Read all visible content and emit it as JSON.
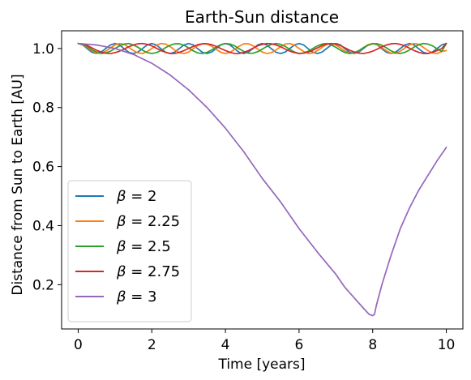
{
  "chart_data": {
    "type": "line",
    "title": "Earth-Sun distance",
    "xlabel": "Time [years]",
    "ylabel": "Distance from Sun to Earth [AU]",
    "xlim": [
      -0.45,
      10.45
    ],
    "ylim": [
      0.05,
      1.06
    ],
    "xticks": [
      0,
      2,
      4,
      6,
      8,
      10
    ],
    "yticks": [
      0.2,
      0.4,
      0.6,
      0.8,
      1.0
    ],
    "xtick_labels": [
      "0",
      "2",
      "4",
      "6",
      "8",
      "10"
    ],
    "ytick_labels": [
      "0.2",
      "0.4",
      "0.6",
      "0.8",
      "1.0"
    ],
    "grid": false,
    "legend_position": "lower-left",
    "series": [
      {
        "name": "β = 2",
        "beta": "2",
        "color": "#1f77b4",
        "x": [
          0,
          0.125,
          0.25,
          0.375,
          0.5,
          0.625,
          0.75,
          0.875,
          1,
          1.125,
          1.25,
          1.375,
          1.5,
          1.625,
          1.75,
          1.875,
          2,
          2.125,
          2.25,
          2.375,
          2.5,
          2.625,
          2.75,
          2.875,
          3,
          3.125,
          3.25,
          3.375,
          3.5,
          3.625,
          3.75,
          3.875,
          4,
          4.125,
          4.25,
          4.375,
          4.5,
          4.625,
          4.75,
          4.875,
          5,
          5.125,
          5.25,
          5.375,
          5.5,
          5.625,
          5.75,
          5.875,
          6,
          6.125,
          6.25,
          6.375,
          6.5,
          6.625,
          6.75,
          6.875,
          7,
          7.125,
          7.25,
          7.375,
          7.5,
          7.625,
          7.75,
          7.875,
          8,
          8.125,
          8.25,
          8.375,
          8.5,
          8.625,
          8.75,
          8.875,
          9,
          9.125,
          9.25,
          9.375,
          9.5,
          9.625,
          9.75,
          9.875,
          10
        ],
        "y": [
          1.017,
          1.012,
          0.999,
          0.987,
          0.983,
          0.988,
          1.0,
          1.012,
          1.017,
          1.012,
          0.999,
          0.987,
          0.983,
          0.988,
          1.0,
          1.012,
          1.017,
          1.012,
          0.999,
          0.987,
          0.983,
          0.988,
          1.0,
          1.012,
          1.017,
          1.012,
          0.999,
          0.987,
          0.983,
          0.988,
          1.0,
          1.012,
          1.017,
          1.012,
          0.999,
          0.987,
          0.983,
          0.988,
          1.0,
          1.012,
          1.017,
          1.012,
          0.999,
          0.987,
          0.983,
          0.988,
          1.0,
          1.012,
          1.017,
          1.012,
          0.999,
          0.987,
          0.983,
          0.988,
          1.0,
          1.012,
          1.017,
          1.012,
          0.999,
          0.987,
          0.983,
          0.988,
          1.0,
          1.012,
          1.017,
          1.012,
          0.999,
          0.987,
          0.983,
          0.988,
          1.0,
          1.012,
          1.017,
          1.012,
          0.999,
          0.987,
          0.983,
          0.988,
          1.0,
          1.012,
          1.017
        ]
      },
      {
        "name": "β = 2.25",
        "beta": "2.25",
        "color": "#ff7f0e",
        "x": [
          0,
          0.125,
          0.25,
          0.375,
          0.5,
          0.625,
          0.75,
          0.875,
          1,
          1.125,
          1.25,
          1.375,
          1.5,
          1.625,
          1.75,
          1.875,
          2,
          2.125,
          2.25,
          2.375,
          2.5,
          2.625,
          2.75,
          2.875,
          3,
          3.125,
          3.25,
          3.375,
          3.5,
          3.625,
          3.75,
          3.875,
          4,
          4.125,
          4.25,
          4.375,
          4.5,
          4.625,
          4.75,
          4.875,
          5,
          5.125,
          5.25,
          5.375,
          5.5,
          5.625,
          5.75,
          5.875,
          6,
          6.125,
          6.25,
          6.375,
          6.5,
          6.625,
          6.75,
          6.875,
          7,
          7.125,
          7.25,
          7.375,
          7.5,
          7.625,
          7.75,
          7.875,
          8,
          8.125,
          8.25,
          8.375,
          8.5,
          8.625,
          8.75,
          8.875,
          9,
          9.125,
          9.25,
          9.375,
          9.5,
          9.625,
          9.75,
          9.875,
          10
        ],
        "y": [
          1.017,
          1.013,
          1.003,
          0.992,
          0.984,
          0.984,
          0.991,
          1.002,
          1.012,
          1.017,
          1.014,
          1.004,
          0.993,
          0.985,
          0.983,
          0.99,
          1.0,
          1.011,
          1.017,
          1.015,
          1.006,
          0.995,
          0.986,
          0.983,
          0.988,
          0.999,
          1.01,
          1.016,
          1.015,
          1.008,
          0.997,
          0.987,
          0.983,
          0.987,
          0.997,
          1.008,
          1.016,
          1.016,
          1.009,
          0.998,
          0.988,
          0.983,
          0.986,
          0.995,
          1.006,
          1.015,
          1.017,
          1.011,
          1.0,
          0.99,
          0.983,
          0.985,
          0.993,
          1.004,
          1.014,
          1.017,
          1.012,
          1.002,
          0.991,
          0.984,
          0.984,
          0.992,
          1.003,
          1.013,
          1.017,
          1.013,
          1.003,
          0.992,
          0.984,
          0.984,
          0.991,
          1.002,
          1.012,
          1.017,
          1.014,
          1.004,
          0.993,
          0.985,
          0.983,
          0.99,
          0.993
        ]
      },
      {
        "name": "β = 2.5",
        "beta": "2.5",
        "color": "#2ca02c",
        "x": [
          0,
          0.125,
          0.25,
          0.375,
          0.5,
          0.625,
          0.75,
          0.875,
          1,
          1.125,
          1.25,
          1.375,
          1.5,
          1.625,
          1.75,
          1.875,
          2,
          2.125,
          2.25,
          2.375,
          2.5,
          2.625,
          2.75,
          2.875,
          3,
          3.125,
          3.25,
          3.375,
          3.5,
          3.625,
          3.75,
          3.875,
          4,
          4.125,
          4.25,
          4.375,
          4.5,
          4.625,
          4.75,
          4.875,
          5,
          5.125,
          5.25,
          5.375,
          5.5,
          5.625,
          5.75,
          5.875,
          6,
          6.125,
          6.25,
          6.375,
          6.5,
          6.625,
          6.75,
          6.875,
          7,
          7.125,
          7.25,
          7.375,
          7.5,
          7.625,
          7.75,
          7.875,
          8,
          8.125,
          8.25,
          8.375,
          8.5,
          8.625,
          8.75,
          8.875,
          9,
          9.125,
          9.25,
          9.375,
          9.5,
          9.625,
          9.75,
          9.875,
          10
        ],
        "y": [
          1.017,
          1.014,
          1.006,
          0.996,
          0.988,
          0.983,
          0.985,
          0.991,
          1.0,
          1.009,
          1.015,
          1.017,
          1.012,
          1.004,
          0.994,
          0.986,
          0.983,
          0.986,
          0.993,
          1.003,
          1.011,
          1.016,
          1.016,
          1.011,
          1.002,
          0.992,
          0.985,
          0.983,
          0.987,
          0.995,
          1.005,
          1.013,
          1.017,
          1.015,
          1.009,
          0.999,
          0.99,
          0.984,
          0.984,
          0.989,
          0.998,
          1.007,
          1.014,
          1.017,
          1.014,
          1.007,
          0.997,
          0.988,
          0.983,
          0.985,
          0.991,
          1.0,
          1.009,
          1.015,
          1.017,
          1.012,
          1.004,
          0.994,
          0.986,
          0.983,
          0.986,
          0.993,
          1.003,
          1.011,
          1.016,
          1.016,
          1.011,
          1.002,
          0.992,
          0.985,
          0.983,
          0.987,
          0.995,
          1.005,
          1.013,
          1.017,
          1.015,
          1.009,
          0.999,
          0.99,
          1.017
        ]
      },
      {
        "name": "β = 2.75",
        "beta": "2.75",
        "color": "#d62728",
        "x": [
          0,
          0.125,
          0.25,
          0.375,
          0.5,
          0.625,
          0.75,
          0.875,
          1,
          1.125,
          1.25,
          1.375,
          1.5,
          1.625,
          1.75,
          1.875,
          2,
          2.125,
          2.25,
          2.375,
          2.5,
          2.625,
          2.75,
          2.875,
          3,
          3.125,
          3.25,
          3.375,
          3.5,
          3.625,
          3.75,
          3.875,
          4,
          4.125,
          4.25,
          4.375,
          4.5,
          4.625,
          4.75,
          4.875,
          5,
          5.125,
          5.25,
          5.375,
          5.5,
          5.625,
          5.75,
          5.875,
          6,
          6.125,
          6.25,
          6.375,
          6.5,
          6.625,
          6.75,
          6.875,
          7,
          7.125,
          7.25,
          7.375,
          7.5,
          7.625,
          7.75,
          7.875,
          8,
          8.125,
          8.25,
          8.375,
          8.5,
          8.625,
          8.75,
          8.875,
          9,
          9.125,
          9.25,
          9.375,
          9.5,
          9.625,
          9.75,
          9.875,
          10
        ],
        "y": [
          1.017,
          1.015,
          1.01,
          1.002,
          0.994,
          0.988,
          0.984,
          0.983,
          0.986,
          0.991,
          0.998,
          1.006,
          1.012,
          1.016,
          1.017,
          1.014,
          1.009,
          1.001,
          0.993,
          0.987,
          0.983,
          0.983,
          0.987,
          0.993,
          1.0,
          1.007,
          1.013,
          1.016,
          1.016,
          1.013,
          1.007,
          1.0,
          0.993,
          0.987,
          0.983,
          0.983,
          0.987,
          0.993,
          1.001,
          1.009,
          1.014,
          1.017,
          1.016,
          1.012,
          1.006,
          0.998,
          0.991,
          0.986,
          0.983,
          0.984,
          0.988,
          0.994,
          1.002,
          1.01,
          1.015,
          1.017,
          1.015,
          1.01,
          1.002,
          0.994,
          0.988,
          0.984,
          0.983,
          0.986,
          0.991,
          0.998,
          1.006,
          1.012,
          1.016,
          1.017,
          1.014,
          1.009,
          1.001,
          0.993,
          0.987,
          0.983,
          0.983,
          0.987,
          0.993,
          1.0,
          1.017
        ]
      },
      {
        "name": "β = 3",
        "beta": "3",
        "color": "#9467bd",
        "x": [
          0,
          0.5,
          1,
          1.5,
          2,
          2.5,
          3,
          3.5,
          4,
          4.5,
          5,
          5.5,
          6,
          6.5,
          7,
          7.25,
          7.5,
          7.75,
          7.9,
          8.0,
          8.05,
          8.1,
          8.25,
          8.5,
          8.75,
          9,
          9.25,
          9.5,
          9.75,
          10
        ],
        "y": [
          1.017,
          1.012,
          1.0,
          0.98,
          0.95,
          0.91,
          0.86,
          0.8,
          0.73,
          0.65,
          0.56,
          0.48,
          0.39,
          0.31,
          0.235,
          0.19,
          0.155,
          0.12,
          0.1,
          0.095,
          0.1,
          0.13,
          0.2,
          0.3,
          0.39,
          0.46,
          0.52,
          0.57,
          0.62,
          0.665
        ]
      }
    ]
  }
}
